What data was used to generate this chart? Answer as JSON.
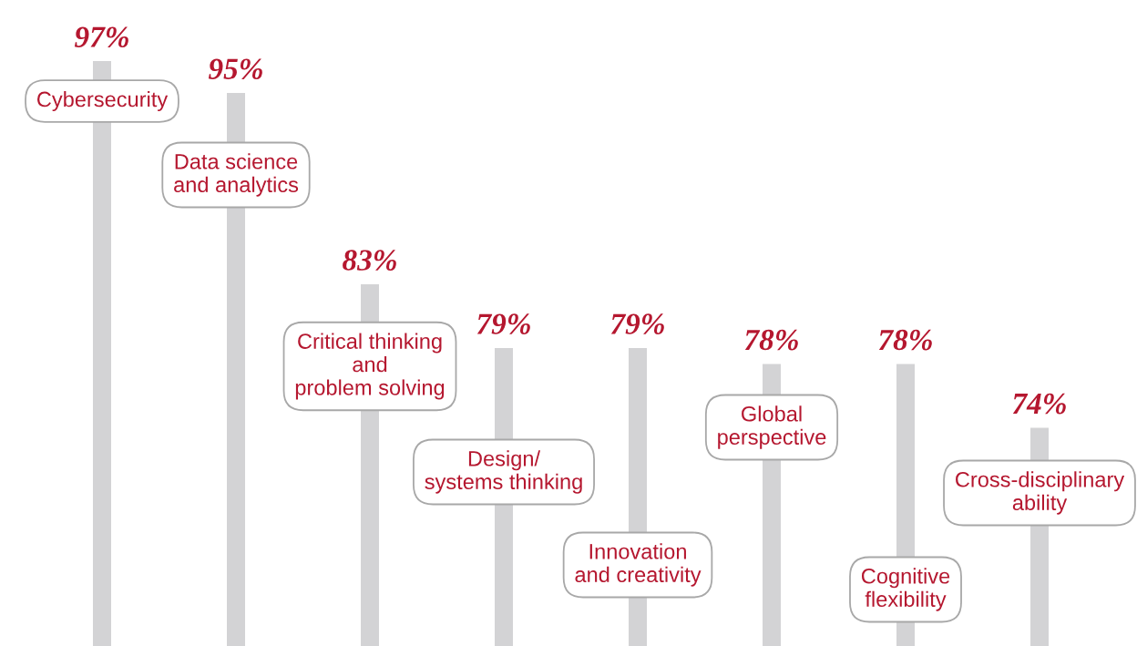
{
  "chart_data": {
    "type": "bar",
    "categories": [
      "Cybersecurity",
      "Data science\nand analytics",
      "Critical thinking\nand\nproblem solving",
      "Design/\nsystems thinking",
      "Innovation\nand creativity",
      "Global\nperspective",
      "Cognitive\nflexibility",
      "Cross-disciplinary\nability"
    ],
    "values": [
      97,
      95,
      83,
      79,
      79,
      78,
      78,
      74
    ],
    "value_labels": [
      "97%",
      "95%",
      "83%",
      "79%",
      "79%",
      "78%",
      "78%",
      "74%"
    ],
    "color": "#d3d3d5"
  }
}
